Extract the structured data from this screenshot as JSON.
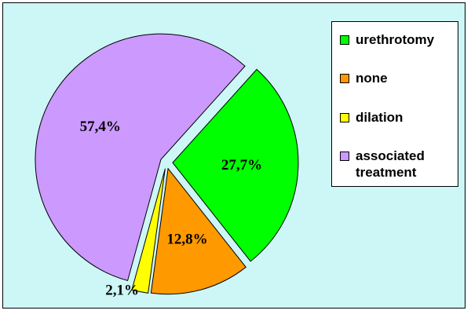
{
  "chart_data": {
    "type": "pie",
    "slices": [
      {
        "name": "urethrotomy",
        "value": 27.7,
        "label": "27,7%",
        "color": "#00ff00"
      },
      {
        "name": "none",
        "value": 12.8,
        "label": "12,8%",
        "color": "#ff9900"
      },
      {
        "name": "dilation",
        "value": 2.1,
        "label": "2,1%",
        "color": "#ffff00"
      },
      {
        "name": "associated\ntreatment",
        "value": 57.4,
        "label": "57,4%",
        "color": "#cc99ff"
      }
    ],
    "legend_position": "top-right",
    "background_color": "#cdf6f6"
  }
}
